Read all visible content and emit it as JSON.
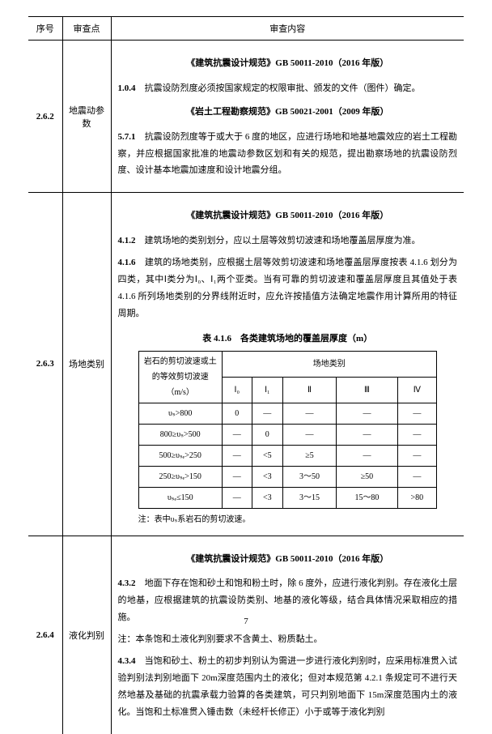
{
  "header": {
    "seq": "序号",
    "point": "审查点",
    "content": "审查内容"
  },
  "rows": [
    {
      "seq": "2.6.2",
      "point": "地震动参数",
      "specs": [
        {
          "title": "《建筑抗震设计规范》GB 50011-2010（2016 年版）",
          "paras": [
            {
              "num": "1.0.4",
              "text": "抗震设防烈度必须按国家规定的权限审批、颁发的文件（图件）确定。"
            }
          ]
        },
        {
          "title": "《岩土工程勘察规范》GB 50021-2001（2009 年版）",
          "paras": [
            {
              "num": "5.7.1",
              "text": "抗震设防烈度等于或大于 6 度的地区，应进行场地和地基地震效应的岩土工程勘察，并应根据国家批准的地震动参数区划和有关的规范，提出勘察场地的抗震设防烈度、设计基本地震加速度和设计地震分组。"
            }
          ]
        }
      ]
    },
    {
      "seq": "2.6.3",
      "point": "场地类别",
      "specs": [
        {
          "title": "《建筑抗震设计规范》GB 50011-2010（2016 年版）",
          "paras": [
            {
              "num": "4.1.2",
              "text": "建筑场地的类别划分，应以土层等效剪切波速和场地覆盖层厚度为准。"
            },
            {
              "num": "4.1.6",
              "text": "建筑的场地类别，应根据土层等效剪切波速和场地覆盖层厚度按表 4.1.6 划分为四类，其中Ⅰ类分为Ⅰ₀、Ⅰ₁两个亚类。当有可靠的剪切波速和覆盖层厚度且其值处于表 4.1.6 所列场地类别的分界线附近时，应允许按插值方法确定地震作用计算所用的特征周期。"
            }
          ]
        }
      ],
      "innerTable": {
        "caption": "表 4.1.6　各类建筑场地的覆盖层厚度（m）",
        "header1": "岩石的剪切波速或土的等效剪切波速（m/s）",
        "header2": "场地类别",
        "cats": [
          "Ⅰ₀",
          "Ⅰ₁",
          "Ⅱ",
          "Ⅲ",
          "Ⅳ"
        ],
        "dataRows": [
          {
            "label": "υₛ>800",
            "cells": [
              "0",
              "—",
              "—",
              "—",
              "—"
            ]
          },
          {
            "label": "800≥υₛ>500",
            "cells": [
              "—",
              "0",
              "—",
              "—",
              "—"
            ]
          },
          {
            "label": "500≥υₛₑ>250",
            "cells": [
              "—",
              "<5",
              "≥5",
              "—",
              "—"
            ]
          },
          {
            "label": "250≥υₛₑ>150",
            "cells": [
              "—",
              "<3",
              "3～50",
              "≥50",
              "—"
            ]
          },
          {
            "label": "υₛₑ≤150",
            "cells": [
              "—",
              "<3",
              "3～15",
              "15～80",
              ">80"
            ]
          }
        ],
        "note": "注：表中υₛ系岩石的剪切波速。"
      }
    },
    {
      "seq": "2.6.4",
      "point": "液化判别",
      "specs": [
        {
          "title": "《建筑抗震设计规范》GB 50011-2010（2016 年版）",
          "paras": [
            {
              "num": "4.3.2",
              "text": "地面下存在饱和砂土和饱和粉土时，除 6 度外，应进行液化判别。存在液化土层的地基，应根据建筑的抗震设防类别、地基的液化等级，结合具体情况采取相应的措施。"
            },
            {
              "num": "",
              "text": "注：本条饱和土液化判别要求不含黄土、粉质黏土。"
            },
            {
              "num": "4.3.4",
              "text": "当饱和砂土、粉土的初步判别认为需进一步进行液化判别时，应采用标准贯入试验判别法判别地面下 20m深度范围内土的液化；但对本规范第 4.2.1 条规定可不进行天然地基及基础的抗震承载力验算的各类建筑，可只判别地面下 15m深度范围内土的液化。当饱和土标准贯入锤击数（未经杆长修正）小于或等于液化判别"
            }
          ]
        }
      ]
    }
  ],
  "pageNumber": "7"
}
